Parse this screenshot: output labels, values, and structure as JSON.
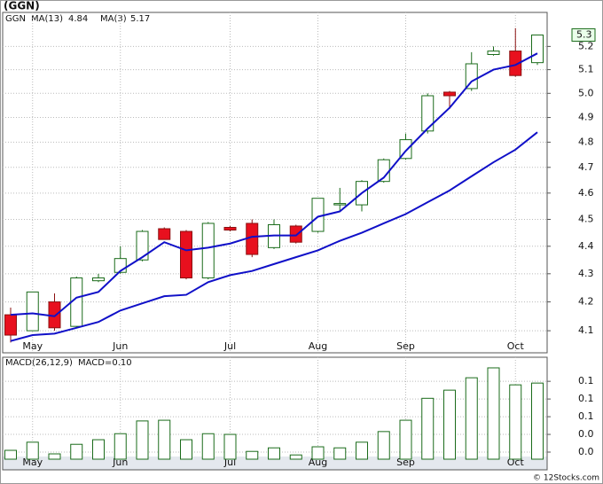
{
  "chart_data": [
    {
      "type": "candlestick",
      "title": "(GGN)",
      "symbol": "GGN",
      "log_scale": true,
      "grid": true,
      "categories": [
        null,
        "May",
        null,
        null,
        null,
        "Jun",
        null,
        null,
        null,
        null,
        "Jul",
        null,
        null,
        null,
        "Aug",
        null,
        null,
        null,
        "Sep",
        null,
        null,
        null,
        null,
        "Oct",
        null
      ],
      "open": [
        4.155,
        4.1,
        4.2,
        4.115,
        4.275,
        4.305,
        4.35,
        4.465,
        4.455,
        4.285,
        4.47,
        4.485,
        4.395,
        4.475,
        4.455,
        4.56,
        4.555,
        4.645,
        4.735,
        4.845,
        5.005,
        5.02,
        5.165,
        5.18,
        5.13
      ],
      "high": [
        4.18,
        4.235,
        4.23,
        4.29,
        4.3,
        4.4,
        4.46,
        4.47,
        4.46,
        4.49,
        4.475,
        4.5,
        4.5,
        4.48,
        4.58,
        4.62,
        4.65,
        4.735,
        4.835,
        5.0,
        5.01,
        5.175,
        5.2,
        5.28,
        5.25
      ],
      "low": [
        4.06,
        4.1,
        4.1,
        4.11,
        4.27,
        4.3,
        4.345,
        4.425,
        4.28,
        4.28,
        4.455,
        4.36,
        4.39,
        4.41,
        4.45,
        4.53,
        4.53,
        4.64,
        4.73,
        4.835,
        4.935,
        5.01,
        5.16,
        5.07,
        5.12
      ],
      "close": [
        4.085,
        4.235,
        4.11,
        4.285,
        4.285,
        4.355,
        4.455,
        4.425,
        4.285,
        4.485,
        4.46,
        4.37,
        4.48,
        4.415,
        4.58,
        4.56,
        4.645,
        4.73,
        4.81,
        4.99,
        4.99,
        5.125,
        5.18,
        5.075,
        5.25
      ],
      "up_color": "#1a6b1a",
      "down_color": "#e8101e",
      "series": [
        {
          "name": "MA(13)",
          "last": 4.84,
          "color": "#1010c8",
          "values": [
            4.065,
            4.085,
            4.09,
            4.11,
            4.13,
            4.17,
            4.195,
            4.22,
            4.225,
            4.27,
            4.295,
            4.31,
            4.335,
            4.36,
            4.385,
            4.42,
            4.45,
            4.485,
            4.52,
            4.565,
            4.61,
            4.665,
            4.72,
            4.77,
            4.84
          ]
        },
        {
          "name": "MA(3)",
          "last": 5.17,
          "color": "#1010c8",
          "values": [
            4.155,
            4.16,
            4.15,
            4.215,
            4.235,
            4.31,
            4.36,
            4.415,
            4.385,
            4.395,
            4.41,
            4.435,
            4.44,
            4.44,
            4.51,
            4.53,
            4.6,
            4.66,
            4.765,
            4.855,
            4.94,
            5.05,
            5.1,
            5.12,
            5.17
          ]
        }
      ],
      "last_price": {
        "value": 5.25,
        "label": "5.3"
      },
      "ylim": [
        4.025,
        5.35
      ],
      "yticks": [
        4.1,
        4.2,
        4.3,
        4.4,
        4.5,
        4.6,
        4.7,
        4.8,
        4.9,
        {
          "value": 5,
          "label": "5.0"
        },
        5.1,
        5.2
      ]
    },
    {
      "type": "bar",
      "title": "MACD(26,12,9)",
      "value_title": "MACD=0.10",
      "color": "#1a6b1a",
      "grid": true,
      "values": [
        0.0025,
        0.014,
        -0.0025,
        0.011,
        0.0175,
        0.026,
        0.044,
        0.045,
        0.0175,
        0.026,
        0.025,
        0.001,
        0.006,
        -0.004,
        0.0075,
        0.006,
        0.014,
        0.029,
        0.045,
        0.076,
        0.0875,
        0.105,
        0.119,
        0.095,
        0.0975
      ],
      "ylim": [
        -0.01,
        0.134
      ],
      "yticks": [
        {
          "value": 0,
          "label": "0.0"
        },
        {
          "value": 0.025,
          "label": "0.0"
        },
        {
          "value": 0.05,
          "label": "0.1"
        },
        {
          "value": 0.075,
          "label": "0.1"
        },
        0.1
      ]
    }
  ],
  "footer": "© 12Stocks.com"
}
